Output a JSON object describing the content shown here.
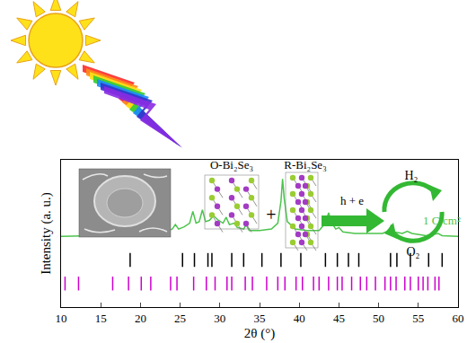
{
  "chart_data": {
    "type": "line",
    "xlabel": "2θ (°)",
    "ylabel": "Intensity (a. u.)",
    "xlim": [
      10,
      60
    ],
    "xticks": [
      10,
      15,
      20,
      25,
      30,
      35,
      40,
      45,
      50,
      55,
      60
    ],
    "ylim": [
      0,
      100
    ],
    "yticks": [],
    "tick_labels": "x",
    "grid": false,
    "series": [
      {
        "type": "line",
        "color": "#4cc44c",
        "x": [
          10,
          14,
          18,
          21,
          23,
          24,
          24.4,
          24.8,
          25.5,
          26.2,
          26.6,
          27.0,
          27.4,
          27.8,
          28.2,
          28.7,
          29.2,
          29.8,
          30.4,
          30.8,
          31.2,
          31.8,
          32.2,
          33.0,
          33.3,
          33.7,
          35,
          36.5,
          37.3,
          37.7,
          37.9,
          38.1,
          38.5,
          39.5,
          41,
          42.5,
          43.3,
          43.7,
          44.1,
          44.6,
          45.0,
          45.5,
          47,
          49,
          50.5,
          51.3,
          51.6,
          51.9,
          53,
          53.6,
          54.2,
          56,
          57.5,
          58,
          60
        ],
        "values": [
          48,
          48.5,
          49,
          50,
          51,
          53,
          56,
          53,
          54.5,
          57,
          65,
          57,
          58,
          66,
          58,
          59,
          62,
          59,
          57,
          61,
          56,
          57,
          54,
          53,
          56,
          52,
          52,
          53,
          57,
          72,
          87,
          74,
          58,
          53,
          52,
          52,
          57,
          64,
          57,
          53,
          54,
          51,
          50,
          50,
          50,
          52,
          56,
          51,
          50,
          51.5,
          50,
          48.5,
          50,
          48.5,
          48
        ]
      },
      {
        "type": "ticks",
        "color": "#000000",
        "marker": "line-ns",
        "x": [
          18.7,
          25.3,
          26.8,
          28.5,
          29.0,
          31.5,
          33.0,
          35.3,
          37.7,
          40.2,
          43.3,
          44.8,
          46.2,
          47.5,
          51.5,
          52.3,
          54.0,
          56.3,
          58.0
        ],
        "values": [
          32,
          32,
          32,
          32,
          32,
          32,
          32,
          32,
          32,
          32,
          32,
          32,
          32,
          32,
          32,
          32,
          32,
          32,
          32
        ]
      },
      {
        "type": "ticks",
        "color": "#cc00cc",
        "marker": "line-ns",
        "x": [
          10.5,
          12.2,
          16.5,
          18.5,
          20.1,
          21.3,
          23.8,
          24.6,
          26.7,
          28.3,
          29.4,
          30.9,
          31.5,
          33.2,
          34.1,
          35.9,
          37.3,
          38.2,
          39.6,
          40.4,
          41.8,
          42.5,
          43.7,
          44.8,
          45.4,
          46.6,
          47.7,
          48.5,
          49.6,
          50.8,
          51.5,
          52.2,
          53.3,
          54.0,
          55.0,
          55.6,
          56.2,
          57.1,
          57.6
        ],
        "values": [
          16,
          16,
          16,
          16,
          16,
          16,
          16,
          16,
          16,
          16,
          16,
          16,
          16,
          16,
          16,
          16,
          16,
          16,
          16,
          16,
          16,
          16,
          16,
          16,
          16,
          16,
          16,
          16,
          16,
          16,
          16,
          16,
          16,
          16,
          16,
          16,
          16,
          16,
          16
        ]
      }
    ],
    "annotations": [
      {
        "text": "1 C/cm²",
        "x": 58,
        "y": 53,
        "color": "#4cc44c"
      }
    ]
  },
  "scheme": {
    "structures": [
      "O-Bi₂Se₃",
      "R-Bi₂Se₃"
    ],
    "plus": "+",
    "process": "h + e",
    "products": [
      "H₂",
      "O₂"
    ]
  }
}
